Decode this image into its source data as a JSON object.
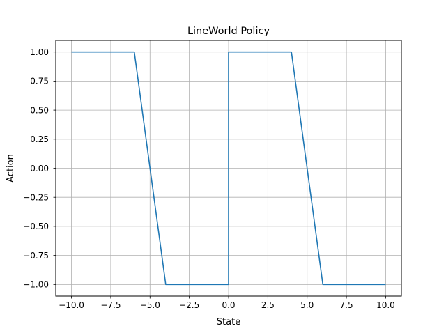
{
  "chart_data": {
    "type": "line",
    "title": "LineWorld Policy",
    "xlabel": "State",
    "ylabel": "Action",
    "xlim": [
      -11,
      11
    ],
    "ylim": [
      -1.1,
      1.1
    ],
    "grid": true,
    "x_ticks": [
      -10,
      -7.5,
      -5,
      -2.5,
      0,
      2.5,
      5,
      7.5,
      10
    ],
    "x_tick_labels": [
      "−10.0",
      "−7.5",
      "−5.0",
      "−2.5",
      "0.0",
      "2.5",
      "5.0",
      "7.5",
      "10.0"
    ],
    "y_ticks": [
      1,
      0.75,
      0.5,
      0.25,
      0,
      -0.25,
      -0.5,
      -0.75,
      -1
    ],
    "y_tick_labels": [
      "1.00",
      "0.75",
      "0.50",
      "0.25",
      "0.00",
      "−0.25",
      "−0.50",
      "−0.75",
      "−1.00"
    ],
    "series": [
      {
        "color": "#1f77b4",
        "x": [
          -10,
          -6,
          -4,
          0,
          0,
          4,
          6,
          10
        ],
        "y": [
          1,
          1,
          -1,
          -1,
          1,
          1,
          -1,
          -1
        ]
      }
    ]
  }
}
